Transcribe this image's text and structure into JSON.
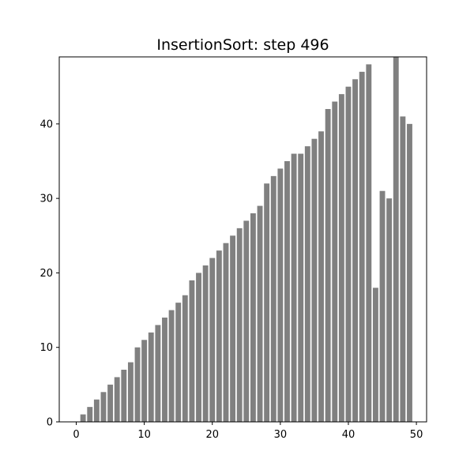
{
  "chart_data": {
    "type": "bar",
    "title": "InsertionSort: step 496",
    "xlabel": "",
    "ylabel": "",
    "x": [
      0,
      1,
      2,
      3,
      4,
      5,
      6,
      7,
      8,
      9,
      10,
      11,
      12,
      13,
      14,
      15,
      16,
      17,
      18,
      19,
      20,
      21,
      22,
      23,
      24,
      25,
      26,
      27,
      28,
      29,
      30,
      31,
      32,
      33,
      34,
      35,
      36,
      37,
      38,
      39,
      40,
      41,
      42,
      43,
      44,
      45,
      46,
      47,
      48,
      49
    ],
    "values": [
      0,
      1,
      2,
      3,
      4,
      5,
      6,
      7,
      8,
      10,
      11,
      12,
      13,
      14,
      15,
      16,
      17,
      19,
      20,
      21,
      22,
      23,
      24,
      25,
      26,
      27,
      28,
      29,
      32,
      33,
      34,
      35,
      36,
      36,
      37,
      38,
      39,
      42,
      43,
      44,
      45,
      46,
      47,
      48,
      18,
      31,
      30,
      49,
      41,
      40
    ],
    "xlim": [
      -2.5,
      51.5
    ],
    "ylim": [
      0,
      49
    ],
    "xticks": [
      0,
      10,
      20,
      30,
      40,
      50
    ],
    "yticks": [
      0,
      10,
      20,
      30,
      40
    ],
    "bar_color": "#808080",
    "grid": false,
    "legend": "none"
  }
}
